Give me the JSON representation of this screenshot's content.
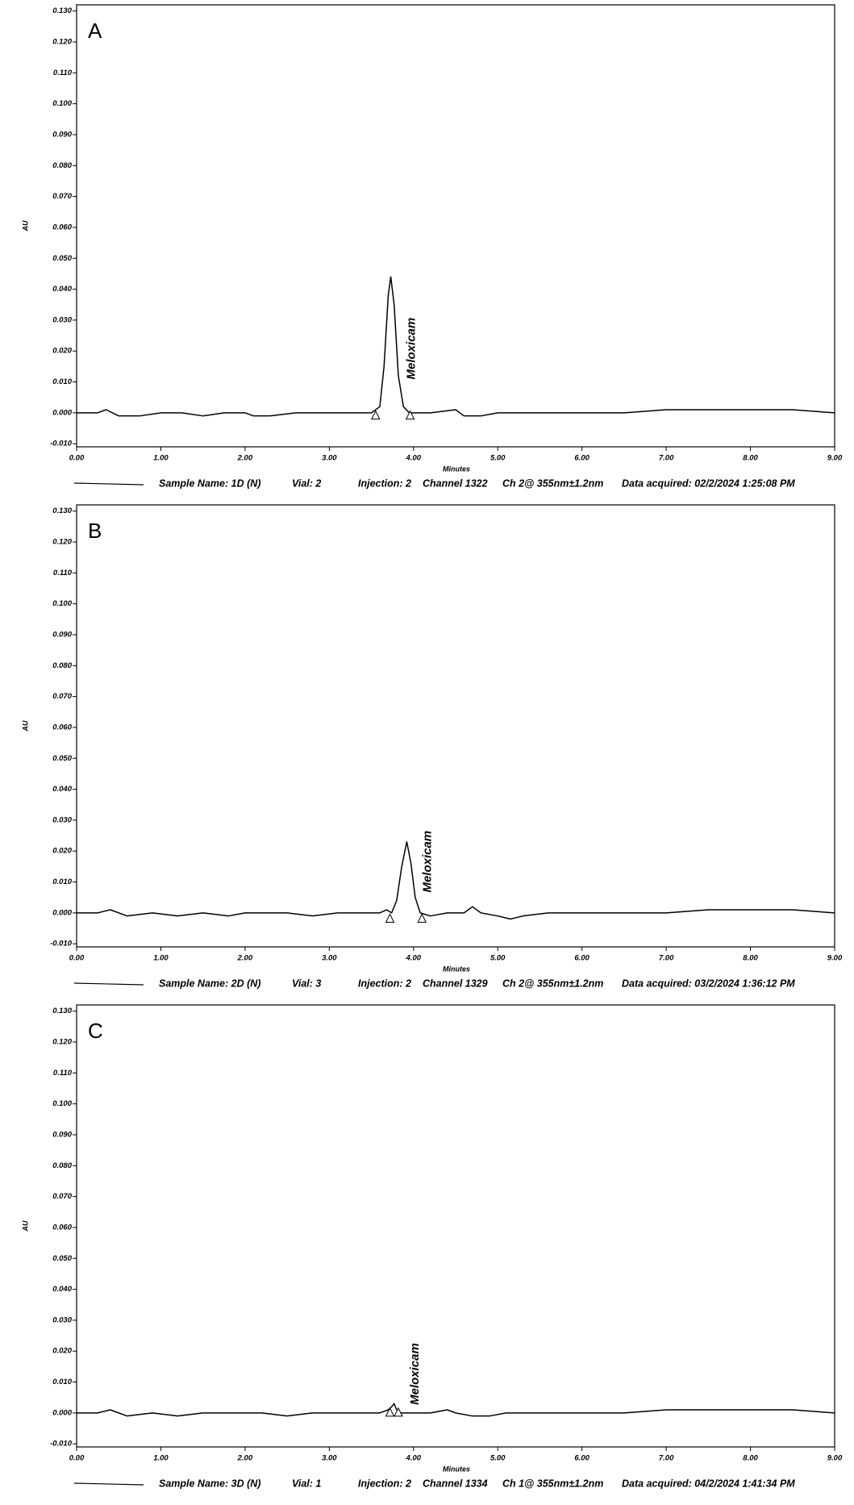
{
  "chart_data": [
    {
      "type": "line",
      "panel_label": "A",
      "ylabel": "AU",
      "xlabel": "Minutes",
      "annotation": "Meloxicam",
      "xlim": [
        0,
        9
      ],
      "ylim": [
        -0.011,
        0.132
      ],
      "xticks": [
        {
          "value": 0,
          "label": "0.00"
        },
        {
          "value": 1,
          "label": "1.00"
        },
        {
          "value": 2,
          "label": "2.00"
        },
        {
          "value": 3,
          "label": "3.00"
        },
        {
          "value": 4,
          "label": "4.00"
        },
        {
          "value": 5,
          "label": "5.00"
        },
        {
          "value": 6,
          "label": "6.00"
        },
        {
          "value": 7,
          "label": "7.00"
        },
        {
          "value": 8,
          "label": "8.00"
        },
        {
          "value": 9,
          "label": "9.00"
        }
      ],
      "yticks": [
        {
          "value": -0.01,
          "label": "-0.010"
        },
        {
          "value": 0,
          "label": "0.000"
        },
        {
          "value": 0.01,
          "label": "0.010"
        },
        {
          "value": 0.02,
          "label": "0.020"
        },
        {
          "value": 0.03,
          "label": "0.030"
        },
        {
          "value": 0.04,
          "label": "0.040"
        },
        {
          "value": 0.05,
          "label": "0.050"
        },
        {
          "value": 0.06,
          "label": "0.060"
        },
        {
          "value": 0.07,
          "label": "0.070"
        },
        {
          "value": 0.08,
          "label": "0.080"
        },
        {
          "value": 0.09,
          "label": "0.090"
        },
        {
          "value": 0.1,
          "label": "0.100"
        },
        {
          "value": 0.11,
          "label": "0.110"
        },
        {
          "value": 0.12,
          "label": "0.120"
        },
        {
          "value": 0.13,
          "label": "0.130"
        }
      ],
      "x": [
        0,
        0.25,
        0.35,
        0.5,
        0.75,
        1.0,
        1.25,
        1.5,
        1.75,
        2.0,
        2.1,
        2.3,
        2.6,
        3.0,
        3.3,
        3.5,
        3.6,
        3.65,
        3.7,
        3.73,
        3.77,
        3.82,
        3.88,
        3.95,
        4.2,
        4.5,
        4.6,
        4.8,
        5.0,
        5.5,
        6.0,
        6.5,
        7.0,
        7.5,
        8.0,
        8.5,
        9.0
      ],
      "series": [
        {
          "color": "#000000",
          "values": [
            0,
            0,
            0.001,
            -0.001,
            -0.001,
            0,
            0,
            -0.001,
            0,
            0,
            -0.001,
            -0.001,
            0,
            0,
            0,
            0,
            0.002,
            0.015,
            0.038,
            0.044,
            0.035,
            0.012,
            0.002,
            0,
            0,
            0.001,
            -0.001,
            -0.001,
            0,
            0,
            0,
            0,
            0.001,
            0.001,
            0.001,
            0.001,
            0
          ]
        }
      ],
      "peak_marks": {
        "x": [
          3.55,
          3.96
        ],
        "y": [
          -0.001,
          -0.001
        ]
      },
      "footer": [
        "Sample Name: 1D (N)",
        "Vial: 2",
        "Injection: 2",
        "Channel 1322",
        "Ch 2@ 355nm±1.2nm",
        "Data acquired: 02/2/2024 1:25:08 PM"
      ]
    },
    {
      "type": "line",
      "panel_label": "B",
      "ylabel": "AU",
      "xlabel": "Minutes",
      "annotation": "Meloxicam",
      "xlim": [
        0,
        9
      ],
      "ylim": [
        -0.011,
        0.132
      ],
      "xticks": [
        {
          "value": 0,
          "label": "0.00"
        },
        {
          "value": 1,
          "label": "1.00"
        },
        {
          "value": 2,
          "label": "2.00"
        },
        {
          "value": 3,
          "label": "3.00"
        },
        {
          "value": 4,
          "label": "4.00"
        },
        {
          "value": 5,
          "label": "5.00"
        },
        {
          "value": 6,
          "label": "6.00"
        },
        {
          "value": 7,
          "label": "7.00"
        },
        {
          "value": 8,
          "label": "8.00"
        },
        {
          "value": 9,
          "label": "9.00"
        }
      ],
      "yticks": [
        {
          "value": -0.01,
          "label": "-0.010"
        },
        {
          "value": 0,
          "label": "0.000"
        },
        {
          "value": 0.01,
          "label": "0.010"
        },
        {
          "value": 0.02,
          "label": "0.020"
        },
        {
          "value": 0.03,
          "label": "0.030"
        },
        {
          "value": 0.04,
          "label": "0.040"
        },
        {
          "value": 0.05,
          "label": "0.050"
        },
        {
          "value": 0.06,
          "label": "0.060"
        },
        {
          "value": 0.07,
          "label": "0.070"
        },
        {
          "value": 0.08,
          "label": "0.080"
        },
        {
          "value": 0.09,
          "label": "0.090"
        },
        {
          "value": 0.1,
          "label": "0.100"
        },
        {
          "value": 0.11,
          "label": "0.110"
        },
        {
          "value": 0.12,
          "label": "0.120"
        },
        {
          "value": 0.13,
          "label": "0.130"
        }
      ],
      "x": [
        0,
        0.25,
        0.4,
        0.6,
        0.9,
        1.2,
        1.5,
        1.8,
        2.0,
        2.2,
        2.5,
        2.8,
        3.1,
        3.4,
        3.6,
        3.68,
        3.74,
        3.8,
        3.86,
        3.92,
        3.97,
        4.02,
        4.08,
        4.2,
        4.4,
        4.6,
        4.7,
        4.8,
        5.0,
        5.15,
        5.3,
        5.6,
        6.0,
        6.5,
        7.0,
        7.5,
        8.0,
        8.5,
        9.0
      ],
      "series": [
        {
          "color": "#000000",
          "values": [
            0,
            0,
            0.001,
            -0.001,
            0,
            -0.001,
            0,
            -0.001,
            0,
            0,
            0,
            -0.001,
            0,
            0,
            0,
            0.001,
            0,
            0.004,
            0.015,
            0.023,
            0.016,
            0.005,
            0,
            -0.001,
            0,
            0,
            0.002,
            0,
            -0.001,
            -0.002,
            -0.001,
            0,
            0,
            0,
            0,
            0.001,
            0.001,
            0.001,
            0
          ]
        }
      ],
      "peak_marks": {
        "x": [
          3.72,
          4.1
        ],
        "y": [
          -0.002,
          -0.002
        ]
      },
      "footer": [
        "Sample Name: 2D (N)",
        "Vial: 3",
        "Injection: 2",
        "Channel 1329",
        "Ch 2@ 355nm±1.2nm",
        "Data acquired: 03/2/2024 1:36:12 PM"
      ]
    },
    {
      "type": "line",
      "panel_label": "C",
      "ylabel": "AU",
      "xlabel": "Minutes",
      "annotation": "Meloxicam",
      "xlim": [
        0,
        9
      ],
      "ylim": [
        -0.011,
        0.132
      ],
      "xticks": [
        {
          "value": 0,
          "label": "0.00"
        },
        {
          "value": 1,
          "label": "1.00"
        },
        {
          "value": 2,
          "label": "2.00"
        },
        {
          "value": 3,
          "label": "3.00"
        },
        {
          "value": 4,
          "label": "4.00"
        },
        {
          "value": 5,
          "label": "5.00"
        },
        {
          "value": 6,
          "label": "6.00"
        },
        {
          "value": 7,
          "label": "7.00"
        },
        {
          "value": 8,
          "label": "8.00"
        },
        {
          "value": 9,
          "label": "9.00"
        }
      ],
      "yticks": [
        {
          "value": -0.01,
          "label": "-0.010"
        },
        {
          "value": 0,
          "label": "0.000"
        },
        {
          "value": 0.01,
          "label": "0.010"
        },
        {
          "value": 0.02,
          "label": "0.020"
        },
        {
          "value": 0.03,
          "label": "0.030"
        },
        {
          "value": 0.04,
          "label": "0.040"
        },
        {
          "value": 0.05,
          "label": "0.050"
        },
        {
          "value": 0.06,
          "label": "0.060"
        },
        {
          "value": 0.07,
          "label": "0.070"
        },
        {
          "value": 0.08,
          "label": "0.080"
        },
        {
          "value": 0.09,
          "label": "0.090"
        },
        {
          "value": 0.1,
          "label": "0.100"
        },
        {
          "value": 0.11,
          "label": "0.110"
        },
        {
          "value": 0.12,
          "label": "0.120"
        },
        {
          "value": 0.13,
          "label": "0.130"
        }
      ],
      "x": [
        0,
        0.25,
        0.4,
        0.6,
        0.9,
        1.2,
        1.5,
        1.8,
        2.0,
        2.2,
        2.5,
        2.8,
        3.1,
        3.4,
        3.6,
        3.7,
        3.74,
        3.77,
        3.8,
        3.85,
        4.0,
        4.2,
        4.4,
        4.5,
        4.7,
        4.9,
        5.1,
        5.3,
        5.6,
        6.0,
        6.5,
        7.0,
        7.5,
        8.0,
        8.5,
        9.0
      ],
      "series": [
        {
          "color": "#000000",
          "values": [
            0,
            0,
            0.001,
            -0.001,
            0,
            -0.001,
            0,
            0,
            0,
            0,
            -0.001,
            0,
            0,
            0,
            0,
            0.001,
            0.002,
            0.003,
            0.001,
            0,
            0,
            0,
            0.001,
            0,
            -0.001,
            -0.001,
            0,
            0,
            0,
            0,
            0,
            0.001,
            0.001,
            0.001,
            0.001,
            0
          ]
        }
      ],
      "peak_marks": {
        "x": [
          3.72,
          3.82
        ],
        "y": [
          0,
          0
        ]
      },
      "footer": [
        "Sample Name: 3D (N)",
        "Vial: 1",
        "Injection: 2",
        "Channel 1334",
        "Ch 1@ 355nm±1.2nm",
        "Data acquired: 04/2/2024 1:41:34 PM"
      ]
    }
  ]
}
